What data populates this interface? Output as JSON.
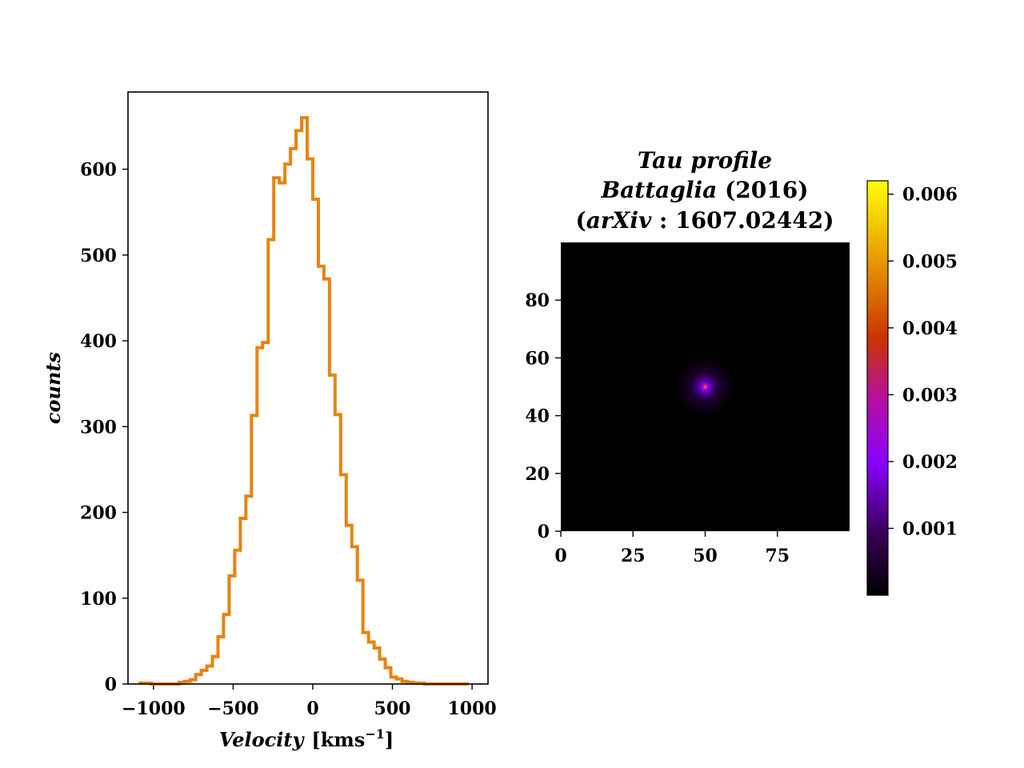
{
  "chart_data": [
    {
      "type": "histogram",
      "xlabel_var": "Velocity",
      "xlabel_unit": "[kms",
      "xlabel_exp": "−1",
      "xlabel_close": "]",
      "ylabel": "counts",
      "xlim": [
        -1160,
        1100
      ],
      "ylim": [
        0,
        690
      ],
      "xticks": [
        -1000,
        -500,
        0,
        500,
        1000
      ],
      "xtick_labels": [
        "−1000",
        "−500",
        "0",
        "500",
        "1000"
      ],
      "yticks": [
        0,
        100,
        200,
        300,
        400,
        500,
        600
      ],
      "ytick_labels": [
        "0",
        "100",
        "200",
        "300",
        "400",
        "500",
        "600"
      ],
      "color": "#e6830f",
      "bin_edges": [
        -1085,
        -1050,
        -1015,
        -980,
        -945,
        -910,
        -875,
        -840,
        -805,
        -770,
        -735,
        -700,
        -665,
        -630,
        -595,
        -560,
        -525,
        -490,
        -455,
        -420,
        -385,
        -350,
        -315,
        -280,
        -245,
        -210,
        -175,
        -140,
        -105,
        -70,
        -35,
        0,
        35,
        70,
        105,
        140,
        175,
        210,
        245,
        280,
        315,
        350,
        385,
        420,
        455,
        490,
        525,
        560,
        595,
        630,
        665,
        700,
        735,
        770,
        805,
        840,
        875,
        910,
        945,
        980
      ],
      "counts": [
        1,
        1,
        0,
        0,
        0,
        0,
        0,
        2,
        3,
        5,
        11,
        16,
        21,
        32,
        55,
        81,
        126,
        156,
        193,
        219,
        313,
        392,
        398,
        518,
        590,
        584,
        606,
        624,
        645,
        660,
        612,
        565,
        487,
        472,
        360,
        314,
        244,
        185,
        160,
        121,
        60,
        49,
        42,
        29,
        19,
        8,
        6,
        3,
        2,
        1,
        1,
        0,
        0,
        0,
        0,
        0,
        0,
        0,
        0
      ]
    },
    {
      "type": "heatmap",
      "title_line1": "Tau profile",
      "title_line2_italic": "Battaglia",
      "title_line2_rest": " (2016)",
      "title_line3_open": "(",
      "title_line3_italic": "arXiv",
      "title_line3_rest": " : 1607.02442)",
      "xlim": [
        0,
        100
      ],
      "ylim": [
        0,
        100
      ],
      "xticks": [
        0,
        25,
        50,
        75
      ],
      "xtick_labels": [
        "0",
        "25",
        "50",
        "75"
      ],
      "yticks": [
        0,
        20,
        40,
        60,
        80
      ],
      "ytick_labels": [
        "0",
        "20",
        "40",
        "60",
        "80"
      ],
      "center": [
        50,
        50
      ],
      "peak_value": 0.0062,
      "colormap": "gnuplot",
      "colorbar_range": [
        0,
        0.0062
      ],
      "colorbar_ticks": [
        0.001,
        0.002,
        0.003,
        0.004,
        0.005,
        0.006
      ],
      "colorbar_tick_labels": [
        "0.001",
        "0.002",
        "0.003",
        "0.004",
        "0.005",
        "0.006"
      ]
    }
  ]
}
